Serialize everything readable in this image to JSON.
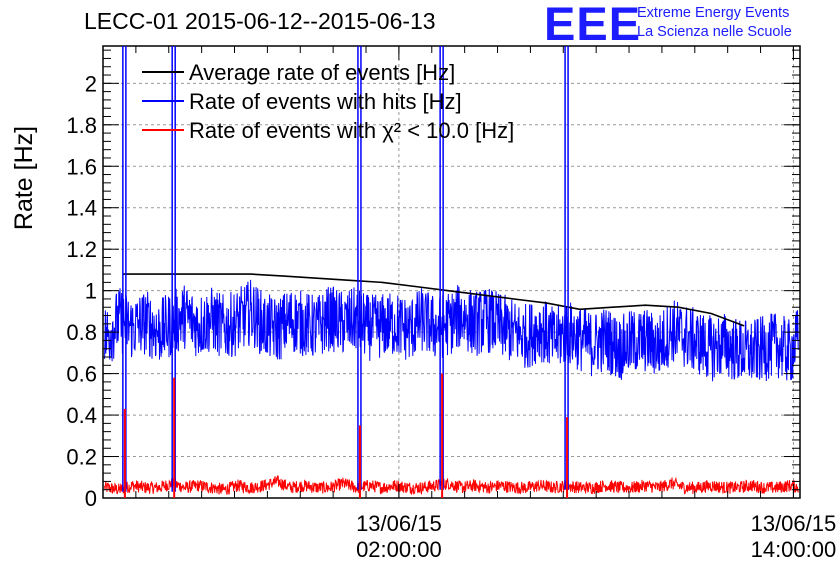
{
  "title": "LECC-01 2015-06-12--2015-06-13",
  "logo": {
    "mark": "EEE",
    "line1": "Extreme Energy Events",
    "line2": "La Scienza nelle Scuole",
    "color": "#1c1cff"
  },
  "chart_data": {
    "type": "line",
    "ylabel": "Rate [Hz]",
    "ylim": [
      0,
      2.18
    ],
    "yticks": [
      0,
      0.2,
      0.4,
      0.6,
      0.8,
      1,
      1.2,
      1.4,
      1.6,
      1.8,
      2
    ],
    "ytick_labels": [
      "0",
      "0.2",
      "0.4",
      "0.6",
      "0.8",
      "1",
      "1.2",
      "1.4",
      "1.6",
      "1.8",
      "2"
    ],
    "x_unit": "hours since 2015-06-12 00:00",
    "xlim": [
      17.0,
      38.2
    ],
    "xticks": [
      26,
      38
    ],
    "xtick_labels": [
      [
        "13/06/15",
        "02:00:00"
      ],
      [
        "13/06/15",
        "14:00:00"
      ]
    ],
    "grid": true,
    "legend_position": "top-left",
    "series": [
      {
        "name": "Average rate of events [Hz]",
        "color": "#000000",
        "x": [
          17.6,
          18.5,
          19.5,
          20.5,
          21.5,
          22.5,
          23.5,
          24.5,
          25.5,
          26.5,
          27.5,
          28.5,
          29.5,
          30.5,
          31.5,
          32.5,
          33.5,
          34.5,
          35.5,
          36.5
        ],
        "values": [
          1.08,
          1.08,
          1.08,
          1.08,
          1.08,
          1.07,
          1.06,
          1.05,
          1.04,
          1.02,
          1.0,
          0.98,
          0.96,
          0.94,
          0.91,
          0.92,
          0.93,
          0.92,
          0.89,
          0.83
        ]
      },
      {
        "name": "Rate of events with hits [Hz]",
        "color": "#0000ff",
        "x": [
          17.1,
          17.5,
          17.9,
          18.3,
          18.7,
          19.1,
          19.5,
          19.9,
          20.3,
          20.7,
          21.1,
          21.5,
          21.9,
          22.3,
          22.7,
          23.1,
          23.5,
          23.9,
          24.3,
          24.7,
          25.1,
          25.5,
          25.9,
          26.3,
          26.7,
          27.1,
          27.5,
          27.9,
          28.3,
          28.7,
          29.1,
          29.5,
          29.9,
          30.3,
          30.7,
          31.1,
          31.5,
          31.9,
          32.3,
          32.7,
          33.1,
          33.5,
          33.9,
          34.3,
          34.7,
          35.1,
          35.5,
          35.9,
          36.3,
          36.7,
          37.1,
          37.5,
          37.9,
          38.2
        ],
        "values": [
          0.78,
          0.86,
          0.82,
          0.85,
          0.8,
          0.84,
          0.88,
          0.83,
          0.86,
          0.82,
          0.85,
          0.9,
          0.83,
          0.81,
          0.86,
          0.84,
          0.82,
          0.87,
          0.84,
          0.86,
          0.82,
          0.83,
          0.84,
          0.81,
          0.86,
          0.82,
          0.84,
          0.88,
          0.84,
          0.86,
          0.83,
          0.8,
          0.78,
          0.82,
          0.76,
          0.8,
          0.77,
          0.74,
          0.77,
          0.72,
          0.75,
          0.76,
          0.73,
          0.81,
          0.78,
          0.75,
          0.72,
          0.74,
          0.71,
          0.7,
          0.72,
          0.74,
          0.7,
          0.78
        ]
      },
      {
        "name": "Rate of events with χ² < 10.0 [Hz]",
        "color": "#ff0000",
        "x": [
          17.1,
          17.5,
          17.9,
          18.3,
          18.7,
          19.1,
          19.5,
          19.9,
          20.3,
          20.7,
          21.1,
          21.5,
          21.9,
          22.3,
          22.7,
          23.1,
          23.5,
          23.9,
          24.3,
          24.7,
          25.1,
          25.5,
          25.9,
          26.3,
          26.7,
          27.1,
          27.5,
          27.9,
          28.3,
          28.7,
          29.1,
          29.5,
          29.9,
          30.3,
          30.7,
          31.1,
          31.5,
          31.9,
          32.3,
          32.7,
          33.1,
          33.5,
          33.9,
          34.3,
          34.7,
          35.1,
          35.5,
          35.9,
          36.3,
          36.7,
          37.1,
          37.5,
          37.9,
          38.2
        ],
        "values": [
          0.05,
          0.04,
          0.06,
          0.05,
          0.05,
          0.07,
          0.05,
          0.06,
          0.05,
          0.04,
          0.06,
          0.05,
          0.06,
          0.08,
          0.05,
          0.06,
          0.05,
          0.05,
          0.07,
          0.05,
          0.06,
          0.05,
          0.06,
          0.05,
          0.05,
          0.06,
          0.07,
          0.05,
          0.06,
          0.05,
          0.06,
          0.05,
          0.05,
          0.06,
          0.05,
          0.06,
          0.05,
          0.05,
          0.06,
          0.05,
          0.05,
          0.06,
          0.05,
          0.07,
          0.05,
          0.05,
          0.06,
          0.05,
          0.05,
          0.06,
          0.05,
          0.05,
          0.06,
          0.05
        ]
      }
    ],
    "spikes": [
      {
        "x": 17.65,
        "blue_min": 0.03,
        "red_peak": 0.43
      },
      {
        "x": 19.15,
        "blue_min": 0.03,
        "red_peak": 0.58
      },
      {
        "x": 24.8,
        "blue_min": 0.04,
        "red_peak": 0.35
      },
      {
        "x": 27.3,
        "blue_min": 0.04,
        "red_peak": 0.6
      },
      {
        "x": 31.1,
        "blue_min": 0.04,
        "red_peak": 0.39
      }
    ]
  }
}
